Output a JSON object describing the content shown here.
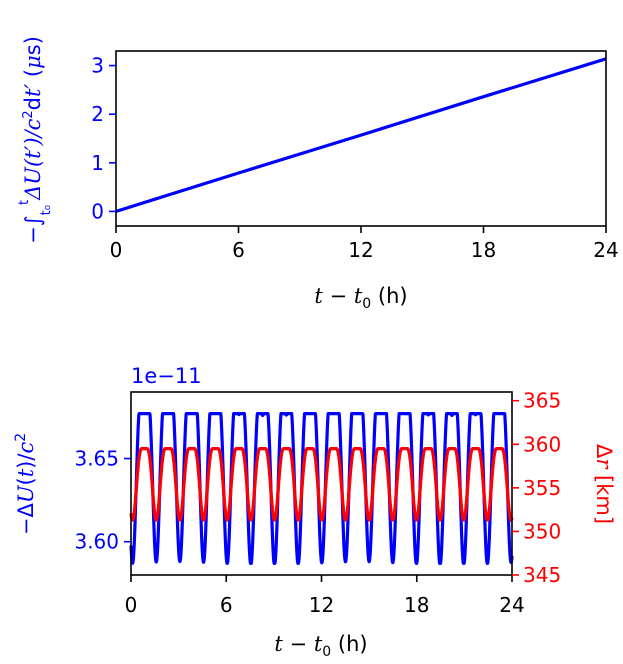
{
  "colors": {
    "blue": "#0000ff",
    "red": "#ff0000",
    "axis": "#000000"
  },
  "chart_data": [
    {
      "type": "line",
      "title": "",
      "xlabel": "t − t0 (h)",
      "ylabel": "−∫ΔU(t′)/c² dt′ (μs)",
      "xlim": [
        0,
        24
      ],
      "ylim": [
        -0.3,
        3.3
      ],
      "xticks": [
        0,
        6,
        12,
        18,
        24
      ],
      "yticks": [
        0,
        1,
        2,
        3
      ],
      "xtick_labels": [
        "0",
        "6",
        "12",
        "18",
        "24"
      ],
      "ytick_labels": [
        "0",
        "1",
        "2",
        "3"
      ],
      "grid": false,
      "series": [
        {
          "color": "#0000ff",
          "x": [
            0,
            6,
            12,
            18,
            24
          ],
          "y": [
            0,
            0.79,
            1.57,
            2.36,
            3.14
          ]
        }
      ]
    },
    {
      "type": "line",
      "title": "",
      "xlabel": "t − t0 (h)",
      "ylabel_left": "−ΔU(t)/c²",
      "ylabel_right": "Δr [km]",
      "offset_text": "1e−11",
      "xlim": [
        0,
        24
      ],
      "ylim_left": [
        3.58,
        3.69
      ],
      "ylim_right": [
        345,
        366
      ],
      "xticks": [
        0,
        6,
        12,
        18,
        24
      ],
      "xtick_labels": [
        "0",
        "6",
        "12",
        "18",
        "24"
      ],
      "yticks_left": [
        3.6,
        3.65
      ],
      "ytick_labels_left": [
        "3.60",
        "3.65"
      ],
      "yticks_right": [
        345,
        350,
        355,
        360,
        365
      ],
      "ytick_labels_right": [
        "345",
        "350",
        "355",
        "360",
        "365"
      ],
      "grid": false,
      "oscillation": {
        "period_h": 1.49,
        "phase_h": 0.1
      },
      "series": [
        {
          "axis": "left",
          "color": "#0000ff",
          "min": 3.587,
          "max": 3.677,
          "mean": 3.64
        },
        {
          "axis": "right",
          "color": "#ff0000",
          "min": 351.3,
          "max": 359.5,
          "mean": 353.5
        }
      ]
    }
  ]
}
